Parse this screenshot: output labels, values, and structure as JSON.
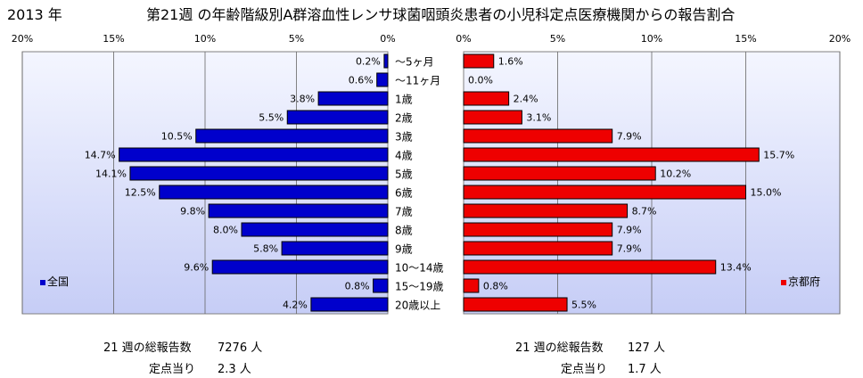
{
  "header": {
    "year": "2013 年",
    "title": "第21週 の年齢階級別A群溶血性レンサ球菌咽頭炎患者の小児科定点医療機関からの報告割合"
  },
  "colors": {
    "national_bar": "#0000cc",
    "kyoto_bar": "#ee0000",
    "plot_bg_top": "#f4f6ff",
    "plot_bg_bottom": "#c6cdf6"
  },
  "chart_data": [
    {
      "type": "bar",
      "orientation": "horizontal",
      "direction": "right-to-left",
      "legend": "全国",
      "legend_position": "bottom-left",
      "xlim": [
        0,
        20
      ],
      "ticks": [
        "20%",
        "15%",
        "10%",
        "5%",
        "0%"
      ],
      "grid": true,
      "categories": [
        "～5ヶ月",
        "～11ヶ月",
        "1歳",
        "2歳",
        "3歳",
        "4歳",
        "5歳",
        "6歳",
        "7歳",
        "8歳",
        "9歳",
        "10～14歳",
        "15～19歳",
        "20歳以上"
      ],
      "values": [
        0.2,
        0.6,
        3.8,
        5.5,
        10.5,
        14.7,
        14.1,
        12.5,
        9.8,
        8.0,
        5.8,
        9.6,
        0.8,
        4.2
      ],
      "labels": [
        "0.2%",
        "0.6%",
        "3.8%",
        "5.5%",
        "10.5%",
        "14.7%",
        "14.1%",
        "12.5%",
        "9.8%",
        "8.0%",
        "5.8%",
        "9.6%",
        "0.8%",
        "4.2%"
      ]
    },
    {
      "type": "bar",
      "orientation": "horizontal",
      "direction": "left-to-right",
      "legend": "京都府",
      "legend_position": "bottom-right",
      "xlim": [
        0,
        20
      ],
      "ticks": [
        "0%",
        "5%",
        "10%",
        "15%",
        "20%"
      ],
      "grid": true,
      "categories": [
        "～5ヶ月",
        "～11ヶ月",
        "1歳",
        "2歳",
        "3歳",
        "4歳",
        "5歳",
        "6歳",
        "7歳",
        "8歳",
        "9歳",
        "10～14歳",
        "15～19歳",
        "20歳以上"
      ],
      "values": [
        1.6,
        0.0,
        2.4,
        3.1,
        7.9,
        15.7,
        10.2,
        15.0,
        8.7,
        7.9,
        7.9,
        13.4,
        0.8,
        5.5
      ],
      "labels": [
        "1.6%",
        "0.0%",
        "2.4%",
        "3.1%",
        "7.9%",
        "15.7%",
        "10.2%",
        "15.0%",
        "8.7%",
        "7.9%",
        "7.9%",
        "13.4%",
        "0.8%",
        "5.5%"
      ]
    }
  ],
  "summary": {
    "national": {
      "total_label": "21 週の総報告数",
      "total_value": "7276 人",
      "per_label": "定点当り",
      "per_value": "2.3 人"
    },
    "kyoto": {
      "total_label": "21 週の総報告数",
      "total_value": "127 人",
      "per_label": "定点当り",
      "per_value": "1.7 人"
    }
  }
}
